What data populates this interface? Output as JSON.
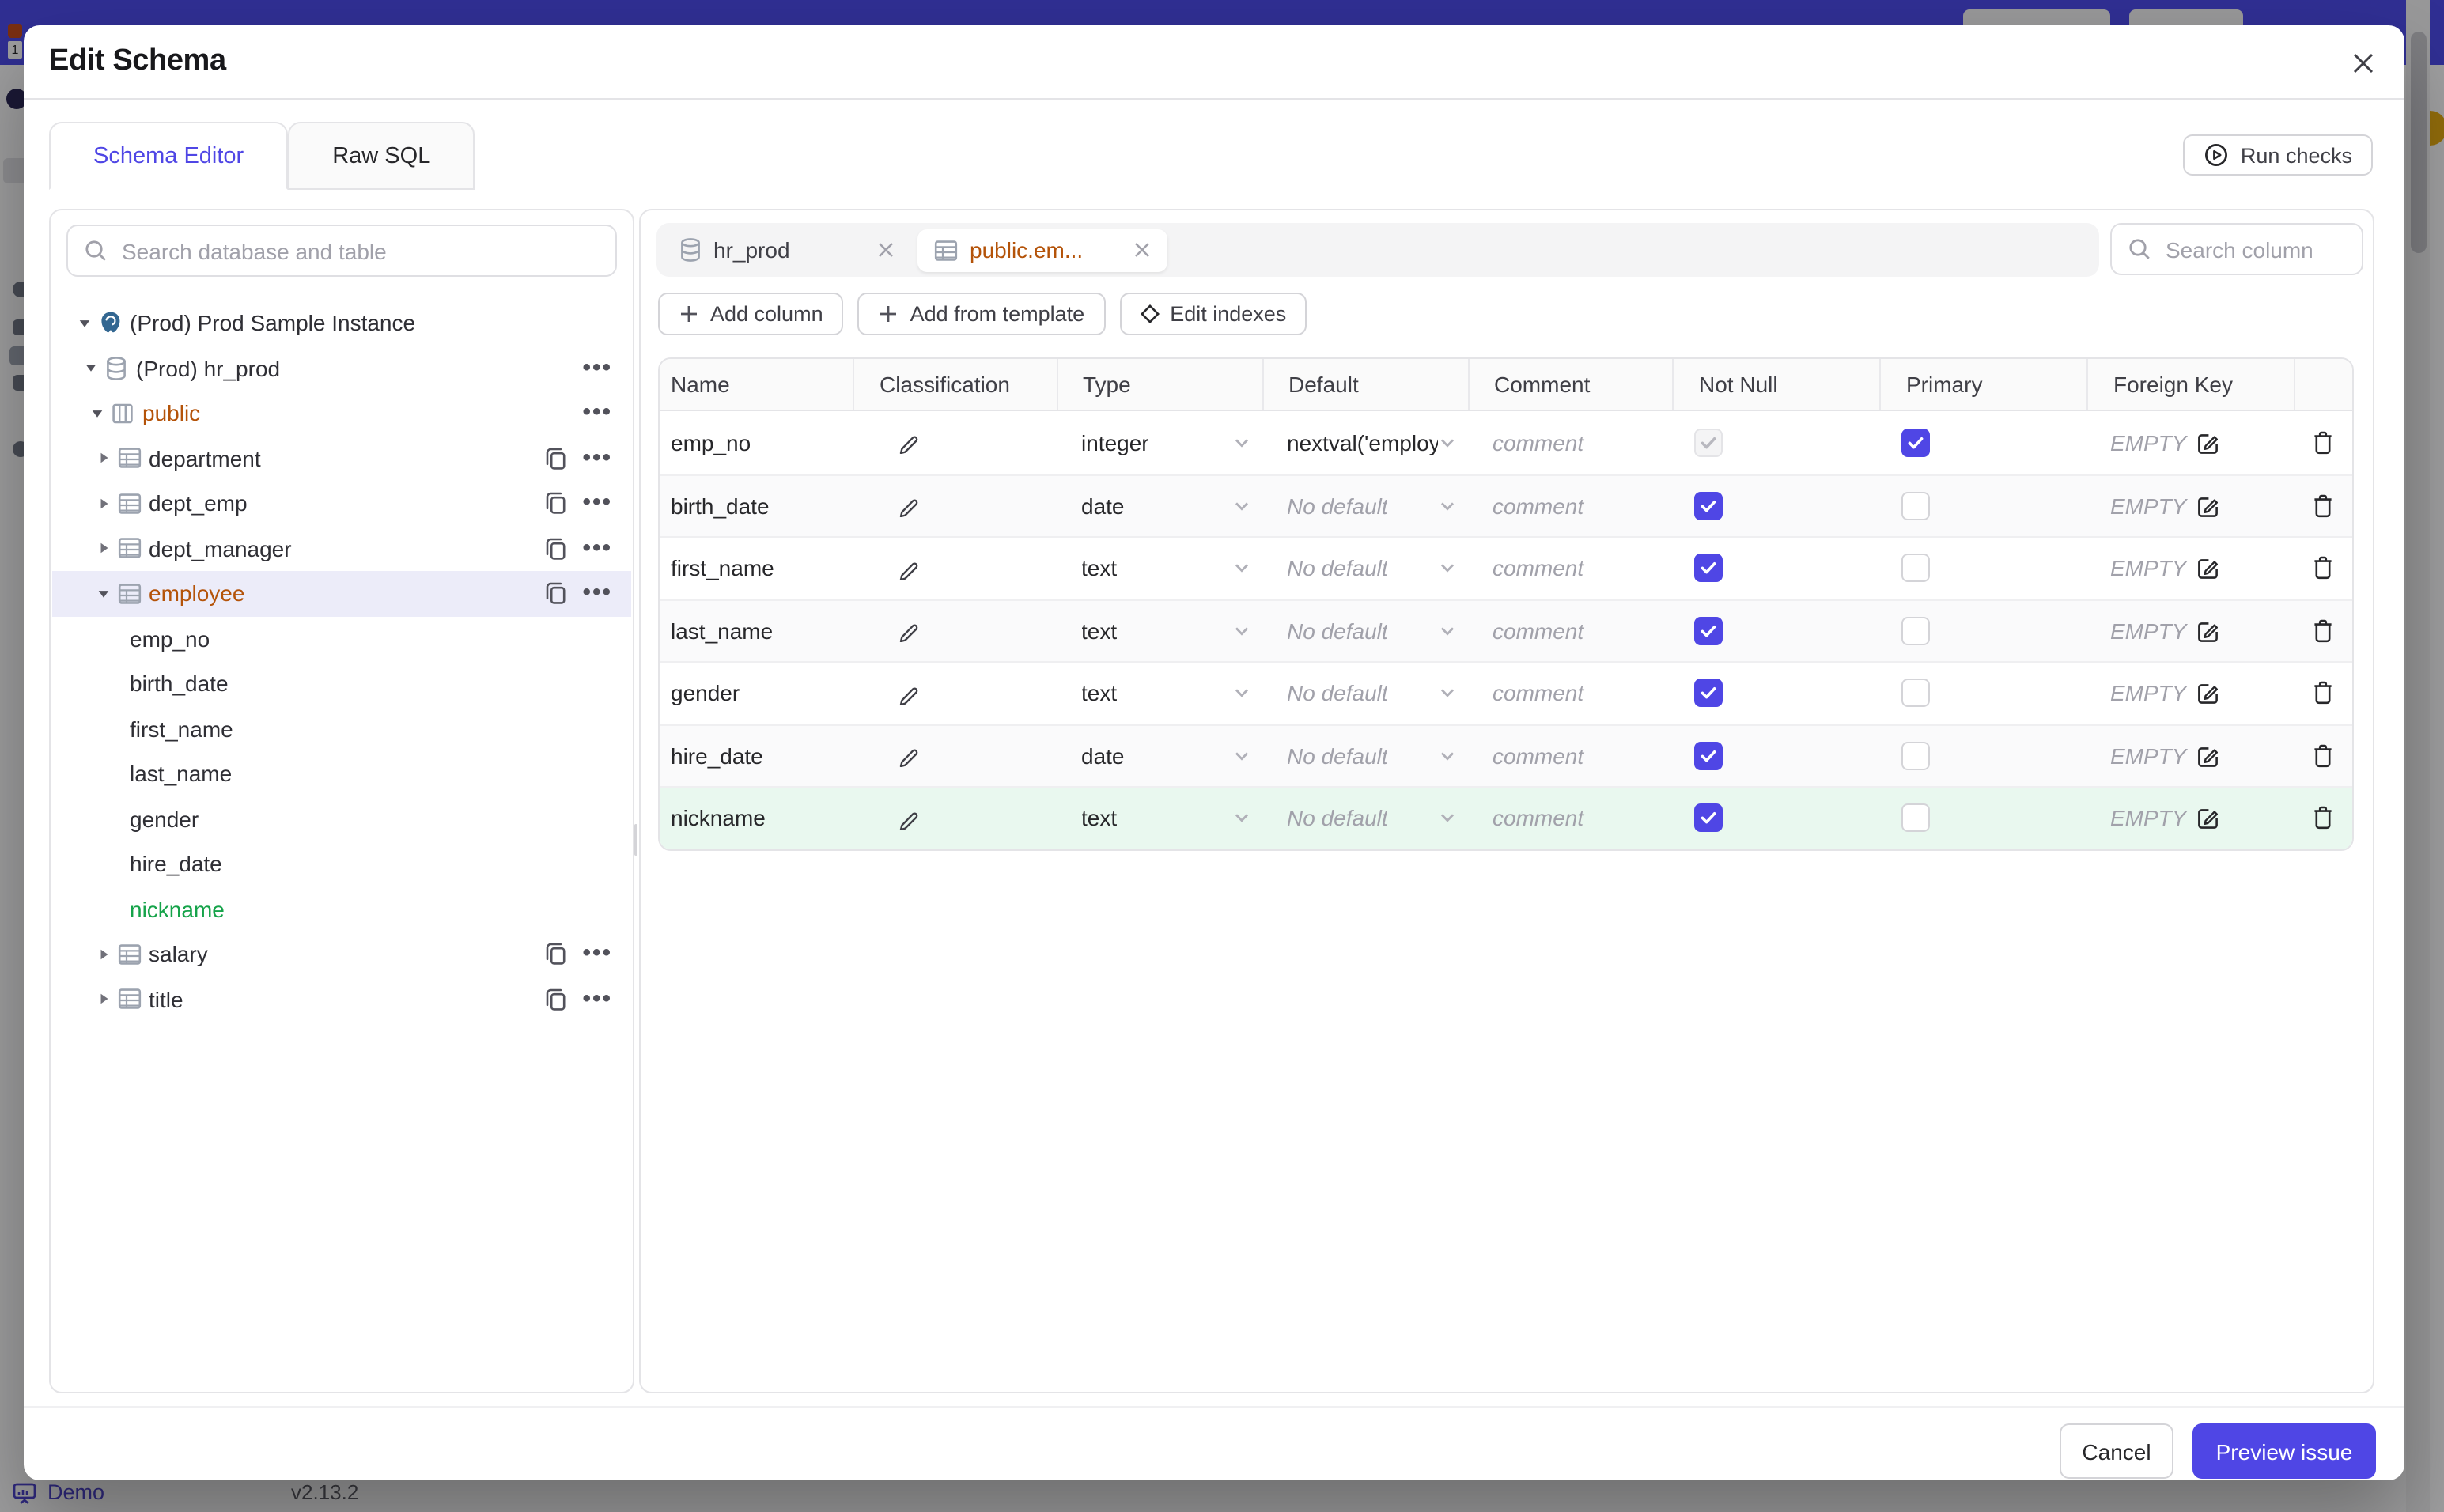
{
  "colors": {
    "accent": "#4f46e5",
    "amber": "#b45309",
    "green": "#16a34a",
    "added_row_bg": "#e9f8ef",
    "selected_tree_bg": "#ececf9",
    "app_bar": "#4340ea",
    "border": "#e4e4e7"
  },
  "backdrop": {
    "brand_badge": "1",
    "footer": {
      "demo_label": "Demo",
      "version": "v2.13.2"
    }
  },
  "modal": {
    "title": "Edit Schema"
  },
  "mode_tabs": [
    {
      "label": "Schema Editor",
      "active": true
    },
    {
      "label": "Raw SQL",
      "active": false
    }
  ],
  "run_checks_label": "Run checks",
  "sidebar": {
    "search_placeholder": "Search database and table",
    "tree": [
      {
        "label": "(Prod) Prod Sample Instance",
        "icon": "postgres",
        "level": 0,
        "expanded": true,
        "actions": []
      },
      {
        "label": "(Prod) hr_prod",
        "icon": "database",
        "level": 1,
        "expanded": true,
        "actions": [
          "more"
        ]
      },
      {
        "label": "public",
        "icon": "schema",
        "level": 2,
        "expanded": true,
        "color": "amber",
        "actions": [
          "more"
        ]
      },
      {
        "label": "department",
        "icon": "table",
        "level": 3,
        "expanded": false,
        "actions": [
          "copy",
          "more"
        ]
      },
      {
        "label": "dept_emp",
        "icon": "table",
        "level": 3,
        "expanded": false,
        "actions": [
          "copy",
          "more"
        ]
      },
      {
        "label": "dept_manager",
        "icon": "table",
        "level": 3,
        "expanded": false,
        "actions": [
          "copy",
          "more"
        ]
      },
      {
        "label": "employee",
        "icon": "table",
        "level": 3,
        "expanded": true,
        "selected": true,
        "color": "amber",
        "actions": [
          "copy",
          "more"
        ]
      },
      {
        "label": "emp_no",
        "kind": "column"
      },
      {
        "label": "birth_date",
        "kind": "column"
      },
      {
        "label": "first_name",
        "kind": "column"
      },
      {
        "label": "last_name",
        "kind": "column"
      },
      {
        "label": "gender",
        "kind": "column"
      },
      {
        "label": "hire_date",
        "kind": "column"
      },
      {
        "label": "nickname",
        "kind": "column",
        "color": "green"
      },
      {
        "label": "salary",
        "icon": "table",
        "level": 3,
        "expanded": false,
        "actions": [
          "copy",
          "more"
        ]
      },
      {
        "label": "title",
        "icon": "table",
        "level": 3,
        "expanded": false,
        "actions": [
          "copy",
          "more"
        ]
      }
    ]
  },
  "editor": {
    "open_tabs": [
      {
        "label": "hr_prod",
        "icon": "database",
        "active": false
      },
      {
        "label": "public.em...",
        "icon": "table",
        "active": true
      }
    ],
    "search_placeholder": "Search column",
    "toolbar": [
      {
        "label": "Add column",
        "icon": "plus"
      },
      {
        "label": "Add from template",
        "icon": "plus"
      },
      {
        "label": "Edit indexes",
        "icon": "diamond"
      }
    ],
    "table": {
      "columns": [
        "Name",
        "Classification",
        "Type",
        "Default",
        "Comment",
        "Not Null",
        "Primary",
        "Foreign Key",
        ""
      ],
      "comment_placeholder": "comment",
      "foreign_key_empty_label": "EMPTY",
      "rows": [
        {
          "name": "emp_no",
          "type": "integer",
          "default": "nextval('employ",
          "default_placeholder": false,
          "not_null": true,
          "not_null_disabled": true,
          "primary": true,
          "foreign_key": "EMPTY",
          "stripe": false,
          "added": false
        },
        {
          "name": "birth_date",
          "type": "date",
          "default": "No default",
          "default_placeholder": true,
          "not_null": true,
          "not_null_disabled": false,
          "primary": false,
          "foreign_key": "EMPTY",
          "stripe": true,
          "added": false
        },
        {
          "name": "first_name",
          "type": "text",
          "default": "No default",
          "default_placeholder": true,
          "not_null": true,
          "not_null_disabled": false,
          "primary": false,
          "foreign_key": "EMPTY",
          "stripe": false,
          "added": false
        },
        {
          "name": "last_name",
          "type": "text",
          "default": "No default",
          "default_placeholder": true,
          "not_null": true,
          "not_null_disabled": false,
          "primary": false,
          "foreign_key": "EMPTY",
          "stripe": true,
          "added": false
        },
        {
          "name": "gender",
          "type": "text",
          "default": "No default",
          "default_placeholder": true,
          "not_null": true,
          "not_null_disabled": false,
          "primary": false,
          "foreign_key": "EMPTY",
          "stripe": false,
          "added": false
        },
        {
          "name": "hire_date",
          "type": "date",
          "default": "No default",
          "default_placeholder": true,
          "not_null": true,
          "not_null_disabled": false,
          "primary": false,
          "foreign_key": "EMPTY",
          "stripe": true,
          "added": false
        },
        {
          "name": "nickname",
          "type": "text",
          "default": "No default",
          "default_placeholder": true,
          "not_null": true,
          "not_null_disabled": false,
          "primary": false,
          "foreign_key": "EMPTY",
          "stripe": false,
          "added": true
        }
      ]
    }
  },
  "footer": {
    "cancel_label": "Cancel",
    "primary_label": "Preview issue"
  }
}
